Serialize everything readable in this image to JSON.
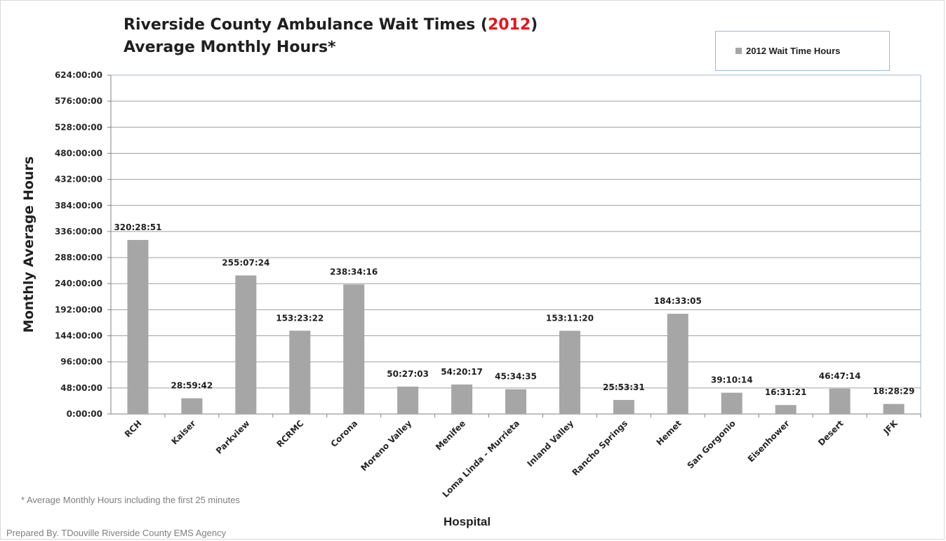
{
  "title": {
    "line1_prefix": "Riverside County Ambulance Wait Times (",
    "line1_highlight": "2012",
    "line1_suffix": ")",
    "line2": "Average Monthly Hours*"
  },
  "legend_label": "2012 Wait Time Hours",
  "footnote": "* Average Monthly Hours including the first 25 minutes",
  "prepared_by": "Prepared By. TDouville Riverside County EMS Agency",
  "colors": {
    "bar": "#a6a6a6",
    "highlight": "#e8141e",
    "grid": "#a0a0a0",
    "plot_border": "#9db8d6"
  },
  "chart_data": {
    "type": "bar",
    "title": "Riverside County Ambulance Wait Times (2012) Average Monthly Hours*",
    "xlabel": "Hospital",
    "ylabel": "Monthly Average Hours",
    "ylim": [
      0,
      624
    ],
    "yticks": [
      0,
      48,
      96,
      144,
      192,
      240,
      288,
      336,
      384,
      432,
      480,
      528,
      576,
      624
    ],
    "ytick_labels": [
      "0:00:00",
      "48:00:00",
      "96:00:00",
      "144:00:00",
      "192:00:00",
      "240:00:00",
      "288:00:00",
      "336:00:00",
      "384:00:00",
      "432:00:00",
      "480:00:00",
      "528:00:00",
      "576:00:00",
      "624:00:00"
    ],
    "grid": true,
    "legend_position": "top-right",
    "categories": [
      "RCH",
      "Kaiser",
      "Parkview",
      "RCRMC",
      "Corona",
      "Moreno Valley",
      "Menifee",
      "Loma Linda - Murrieta",
      "Inland Valley",
      "Rancho Springs",
      "Hemet",
      "San Gorgonio",
      "Eisenhower",
      "Desert",
      "JFK"
    ],
    "series": [
      {
        "name": "2012 Wait Time Hours",
        "values": [
          320.48,
          28.99,
          255.12,
          153.39,
          238.57,
          50.45,
          54.34,
          45.58,
          153.19,
          25.89,
          184.55,
          39.17,
          16.52,
          46.79,
          18.47
        ],
        "labels": [
          "320:28:51",
          "28:59:42",
          "255:07:24",
          "153:23:22",
          "238:34:16",
          "50:27:03",
          "54:20:17",
          "45:34:35",
          "153:11:20",
          "25:53:31",
          "184:33:05",
          "39:10:14",
          "16:31:21",
          "46:47:14",
          "18:28:29"
        ]
      }
    ]
  }
}
